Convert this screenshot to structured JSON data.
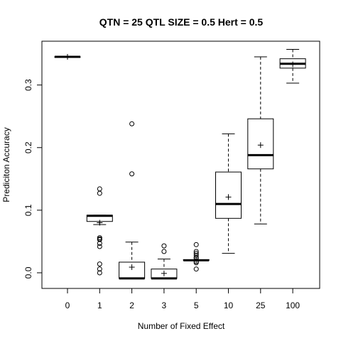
{
  "chart_data": {
    "type": "boxplot",
    "title": "QTN = 25 QTL SIZE = 0.5 Hert = 0.5",
    "xlabel": "Number of Fixed Effect",
    "ylabel": "Prediciton Accuracy",
    "ylim": [
      -0.025,
      0.37
    ],
    "yticks": [
      0.0,
      0.1,
      0.2,
      0.3
    ],
    "ytick_labels": [
      "0.0",
      "0.1",
      "0.2",
      "0.3"
    ],
    "categories": [
      "0",
      "1",
      "2",
      "3",
      "5",
      "10",
      "25",
      "100"
    ],
    "boxes": [
      {
        "lower_whisker": 0.345,
        "q1": 0.345,
        "median": 0.345,
        "q3": 0.345,
        "upper_whisker": 0.345,
        "mean": 0.345,
        "outliers": []
      },
      {
        "lower_whisker": 0.077,
        "q1": 0.082,
        "median": 0.091,
        "q3": 0.092,
        "upper_whisker": 0.092,
        "mean": 0.08,
        "outliers": [
          0.134,
          0.127,
          0.056,
          0.054,
          0.053,
          0.047,
          0.042,
          0.014,
          0.006,
          0.0
        ]
      },
      {
        "lower_whisker": -0.009,
        "q1": -0.009,
        "median": -0.009,
        "q3": 0.017,
        "upper_whisker": 0.049,
        "mean": 0.009,
        "outliers": [
          0.238,
          0.158
        ]
      },
      {
        "lower_whisker": -0.009,
        "q1": -0.009,
        "median": -0.009,
        "q3": 0.006,
        "upper_whisker": 0.022,
        "mean": -0.001,
        "outliers": [
          0.043,
          0.034
        ]
      },
      {
        "lower_whisker": 0.02,
        "q1": 0.02,
        "median": 0.02,
        "q3": 0.021,
        "upper_whisker": 0.021,
        "mean": 0.02,
        "outliers": [
          0.045,
          0.034,
          0.031,
          0.028,
          0.025,
          0.023,
          0.018,
          0.016,
          0.006
        ]
      },
      {
        "lower_whisker": 0.031,
        "q1": 0.087,
        "median": 0.11,
        "q3": 0.161,
        "upper_whisker": 0.222,
        "mean": 0.121,
        "outliers": []
      },
      {
        "lower_whisker": 0.078,
        "q1": 0.166,
        "median": 0.188,
        "q3": 0.246,
        "upper_whisker": 0.345,
        "mean": 0.204,
        "outliers": []
      },
      {
        "lower_whisker": 0.303,
        "q1": 0.327,
        "median": 0.334,
        "q3": 0.342,
        "upper_whisker": 0.357,
        "mean": 0.333,
        "outliers": []
      }
    ]
  }
}
